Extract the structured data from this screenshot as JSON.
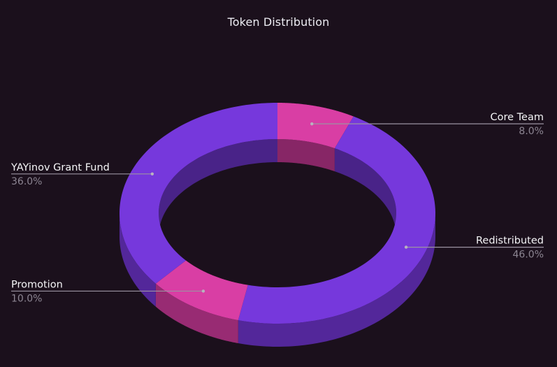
{
  "chart_data": {
    "type": "pie",
    "style": "3d-donut",
    "title": "Token Distribution",
    "categories": [
      "Core Team",
      "Redistributed",
      "Promotion",
      "YAYinov Grant Fund"
    ],
    "values": [
      8.0,
      46.0,
      10.0,
      36.0
    ],
    "value_labels": [
      "8.0%",
      "46.0%",
      "10.0%",
      "36.0%"
    ],
    "colors": [
      "#d93ea4",
      "#7638dc",
      "#d93ea4",
      "#7638dc"
    ],
    "start_position": "top",
    "direction": "clockwise",
    "legend": "none"
  }
}
